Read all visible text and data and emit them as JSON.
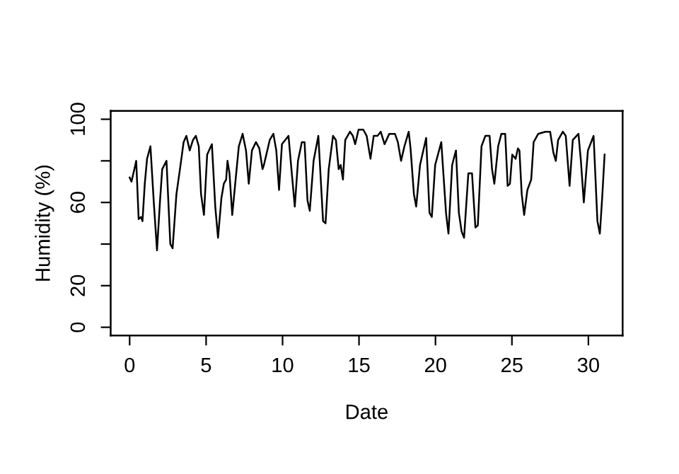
{
  "chart_data": {
    "type": "line",
    "xlabel": "Date",
    "ylabel": "Humidity (%)",
    "xlim": [
      -1.24,
      32.24
    ],
    "ylim": [
      -4,
      104
    ],
    "xticks": [
      0,
      5,
      10,
      15,
      20,
      25,
      30
    ],
    "yticks": [
      0,
      20,
      {
        "value": 40,
        "label": null
      },
      60,
      {
        "value": 80,
        "label": null
      },
      100
    ],
    "grid": false,
    "legend": false,
    "marker": "none",
    "line_style": "solid",
    "series": [
      {
        "color": "#000000",
        "x": [
          0,
          0.12,
          0.34,
          0.43,
          0.59,
          0.74,
          0.84,
          0.99,
          1.14,
          1.36,
          1.58,
          1.79,
          1.98,
          2.13,
          2.41,
          2.66,
          2.81,
          3.06,
          3.31,
          3.53,
          3.71,
          3.93,
          4.14,
          4.33,
          4.52,
          4.67,
          4.86,
          5.07,
          5.38,
          5.6,
          5.78,
          6.0,
          6.16,
          6.31,
          6.4,
          6.53,
          6.71,
          6.93,
          7.14,
          7.39,
          7.61,
          7.79,
          8.0,
          8.26,
          8.48,
          8.69,
          8.78,
          8.94,
          9.16,
          9.4,
          9.59,
          9.77,
          9.96,
          10.39,
          10.58,
          10.8,
          11.01,
          11.26,
          11.44,
          11.63,
          11.78,
          12.03,
          12.34,
          12.65,
          12.81,
          13.02,
          13.3,
          13.49,
          13.67,
          13.8,
          13.95,
          14.1,
          14.41,
          14.6,
          14.75,
          14.97,
          15.28,
          15.5,
          15.75,
          15.96,
          16.21,
          16.42,
          16.67,
          16.98,
          17.35,
          17.54,
          17.75,
          17.97,
          18.25,
          18.37,
          18.59,
          18.74,
          18.99,
          19.39,
          19.61,
          19.76,
          19.98,
          20.38,
          20.69,
          20.85,
          21.09,
          21.34,
          21.53,
          21.71,
          21.87,
          22.15,
          22.39,
          22.61,
          22.77,
          23.01,
          23.26,
          23.54,
          23.7,
          23.85,
          24.1,
          24.31,
          24.56,
          24.72,
          24.87,
          25.02,
          25.24,
          25.39,
          25.49,
          25.64,
          25.8,
          26.01,
          26.26,
          26.42,
          26.72,
          27.19,
          27.5,
          27.71,
          27.87,
          28.02,
          28.33,
          28.52,
          28.77,
          28.98,
          29.35,
          29.51,
          29.7,
          29.97,
          30.34,
          30.59,
          30.75,
          30.9,
          31.06
        ],
        "values": [
          72,
          70,
          77,
          80,
          52,
          53,
          51,
          69,
          81,
          87,
          60,
          37,
          60,
          76,
          80,
          40,
          38,
          64,
          77,
          89,
          92,
          85,
          90,
          92,
          87,
          64,
          54,
          83,
          88,
          58,
          43,
          62,
          69,
          71,
          80,
          74,
          54,
          71,
          87,
          93,
          85,
          69,
          85,
          89,
          86,
          76,
          78,
          83,
          90,
          93,
          85,
          66,
          88,
          92,
          76,
          58,
          80,
          89,
          89,
          61,
          56,
          80,
          92,
          51,
          50,
          76,
          92,
          90,
          76,
          78,
          71,
          90,
          94,
          92,
          88,
          95,
          95,
          92,
          81,
          92,
          92,
          94,
          88,
          93,
          93,
          89,
          80,
          87,
          94,
          86,
          64,
          58,
          78,
          91,
          55,
          53,
          78,
          89,
          55,
          45,
          78,
          85,
          55,
          46,
          43,
          74,
          74,
          48,
          49,
          87,
          92,
          92,
          76,
          69,
          87,
          93,
          93,
          68,
          69,
          83,
          81,
          86,
          85,
          64,
          54,
          66,
          71,
          89,
          93,
          94,
          94,
          84,
          80,
          90,
          94,
          92,
          68,
          90,
          93,
          80,
          60,
          85,
          92,
          51,
          45,
          62,
          83
        ]
      }
    ]
  }
}
